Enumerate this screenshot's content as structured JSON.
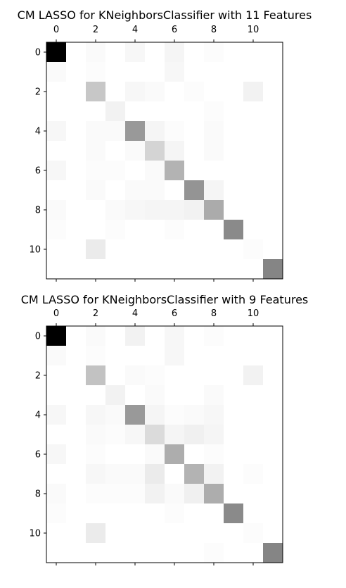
{
  "chart_data": [
    {
      "type": "heatmap",
      "title": "CM LASSO for KNeighborsClassifier with 11 Features",
      "colormap": "Greys",
      "grid": false,
      "xlabel": "",
      "ylabel": "",
      "x_ticks": [
        "0",
        "2",
        "4",
        "6",
        "8",
        "10"
      ],
      "y_ticks": [
        "0",
        "2",
        "4",
        "6",
        "8",
        "10"
      ],
      "matrix": [
        [
          1.0,
          0.0,
          0.02,
          0.0,
          0.03,
          0.0,
          0.04,
          0.0,
          0.01,
          0.0,
          0.0,
          0.0
        ],
        [
          0.02,
          0.0,
          0.01,
          0.0,
          0.0,
          0.0,
          0.03,
          0.0,
          0.0,
          0.0,
          0.0,
          0.0
        ],
        [
          0.0,
          0.0,
          0.22,
          0.0,
          0.03,
          0.02,
          0.0,
          0.01,
          0.0,
          0.0,
          0.05,
          0.0
        ],
        [
          0.0,
          0.0,
          0.0,
          0.05,
          0.0,
          0.0,
          0.0,
          0.0,
          0.01,
          0.0,
          0.0,
          0.0
        ],
        [
          0.03,
          0.0,
          0.02,
          0.02,
          0.4,
          0.04,
          0.01,
          0.0,
          0.02,
          0.0,
          0.0,
          0.0
        ],
        [
          0.0,
          0.0,
          0.02,
          0.0,
          0.02,
          0.17,
          0.04,
          0.0,
          0.02,
          0.0,
          0.0,
          0.0
        ],
        [
          0.03,
          0.0,
          0.01,
          0.01,
          0.0,
          0.02,
          0.3,
          0.0,
          0.0,
          0.0,
          0.0,
          0.0
        ],
        [
          0.0,
          0.0,
          0.02,
          0.0,
          0.02,
          0.02,
          0.0,
          0.42,
          0.04,
          0.0,
          0.0,
          0.0
        ],
        [
          0.02,
          0.0,
          0.0,
          0.02,
          0.03,
          0.04,
          0.04,
          0.05,
          0.33,
          0.0,
          0.0,
          0.0
        ],
        [
          0.01,
          0.0,
          0.0,
          0.01,
          0.0,
          0.0,
          0.01,
          0.0,
          0.0,
          0.46,
          0.0,
          0.0
        ],
        [
          0.0,
          0.0,
          0.08,
          0.0,
          0.0,
          0.0,
          0.0,
          0.0,
          0.0,
          0.0,
          0.01,
          0.0
        ],
        [
          0.0,
          0.0,
          0.0,
          0.0,
          0.0,
          0.0,
          0.0,
          0.0,
          0.0,
          0.0,
          0.0,
          0.48
        ]
      ]
    },
    {
      "type": "heatmap",
      "title": "CM LASSO for KNeighborsClassifier with 9 Features",
      "colormap": "Greys",
      "grid": false,
      "xlabel": "",
      "ylabel": "",
      "x_ticks": [
        "0",
        "2",
        "4",
        "6",
        "8",
        "10"
      ],
      "y_ticks": [
        "0",
        "2",
        "4",
        "6",
        "8",
        "10"
      ],
      "matrix": [
        [
          1.0,
          0.0,
          0.02,
          0.0,
          0.05,
          0.0,
          0.03,
          0.0,
          0.01,
          0.0,
          0.0,
          0.0
        ],
        [
          0.02,
          0.0,
          0.01,
          0.0,
          0.0,
          0.0,
          0.03,
          0.0,
          0.0,
          0.0,
          0.0,
          0.0
        ],
        [
          0.0,
          0.0,
          0.24,
          0.0,
          0.02,
          0.01,
          0.0,
          0.0,
          0.0,
          0.0,
          0.05,
          0.0
        ],
        [
          0.0,
          0.0,
          0.0,
          0.05,
          0.0,
          0.02,
          0.0,
          0.0,
          0.02,
          0.0,
          0.0,
          0.0
        ],
        [
          0.03,
          0.0,
          0.03,
          0.02,
          0.4,
          0.04,
          0.01,
          0.02,
          0.03,
          0.0,
          0.0,
          0.0
        ],
        [
          0.0,
          0.0,
          0.02,
          0.01,
          0.03,
          0.14,
          0.04,
          0.06,
          0.04,
          0.0,
          0.0,
          0.0
        ],
        [
          0.03,
          0.0,
          0.01,
          0.0,
          0.0,
          0.02,
          0.32,
          0.0,
          0.01,
          0.0,
          0.0,
          0.0
        ],
        [
          0.0,
          0.0,
          0.03,
          0.02,
          0.02,
          0.08,
          0.0,
          0.3,
          0.05,
          0.0,
          0.01,
          0.0
        ],
        [
          0.02,
          0.0,
          0.01,
          0.01,
          0.01,
          0.05,
          0.02,
          0.06,
          0.32,
          0.0,
          0.0,
          0.0
        ],
        [
          0.01,
          0.0,
          0.0,
          0.0,
          0.0,
          0.0,
          0.01,
          0.0,
          0.0,
          0.46,
          0.0,
          0.0
        ],
        [
          0.0,
          0.0,
          0.08,
          0.0,
          0.0,
          0.0,
          0.0,
          0.0,
          0.0,
          0.0,
          0.01,
          0.0
        ],
        [
          0.0,
          0.0,
          0.0,
          0.0,
          0.0,
          0.0,
          0.0,
          0.0,
          0.01,
          0.0,
          0.0,
          0.48
        ]
      ]
    }
  ]
}
